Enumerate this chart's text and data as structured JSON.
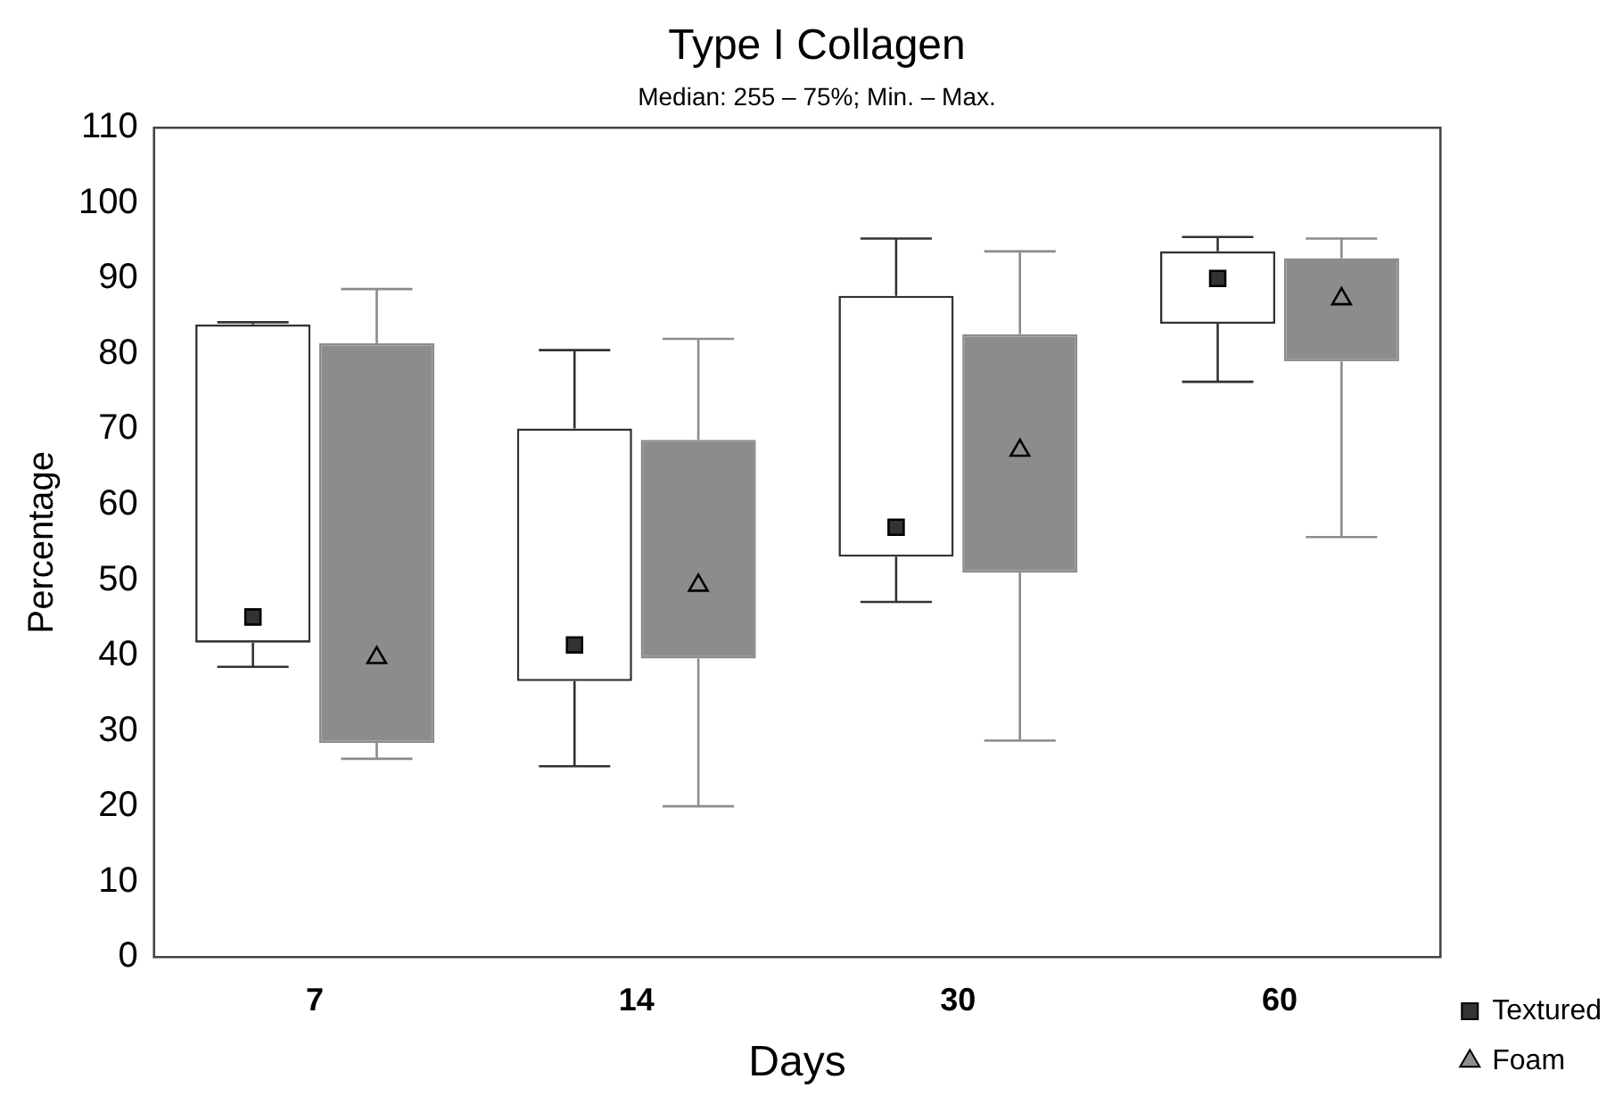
{
  "chart_data": {
    "type": "box",
    "title": "Type I Collagen",
    "subtitle": "Median: 255 – 75%; Min. – Max.",
    "xlabel": "Days",
    "ylabel": "Percentage",
    "categories": [
      "7",
      "14",
      "30",
      "60"
    ],
    "series": [
      {
        "name": "Textured",
        "color": "#333333",
        "marker": "square",
        "boxes": [
          {
            "low": 38.5,
            "q1": 41.7,
            "median": 45.1,
            "q3": 83.9,
            "high": 84.2
          },
          {
            "low": 25.3,
            "q1": 36.6,
            "median": 41.4,
            "q3": 70.1,
            "high": 80.5
          },
          {
            "low": 47.1,
            "q1": 53.1,
            "median": 57.0,
            "q3": 87.7,
            "high": 95.3
          },
          {
            "low": 76.3,
            "q1": 84.0,
            "median": 90.0,
            "q3": 93.6,
            "high": 95.5
          }
        ]
      },
      {
        "name": "Foam",
        "color": "#8c8c8c",
        "marker": "triangle",
        "boxes": [
          {
            "low": 26.3,
            "q1": 28.4,
            "median": 39.7,
            "q3": 81.4,
            "high": 88.6
          },
          {
            "low": 20.0,
            "q1": 39.6,
            "median": 49.3,
            "q3": 68.6,
            "high": 82.0
          },
          {
            "low": 28.7,
            "q1": 51.0,
            "median": 67.2,
            "q3": 82.6,
            "high": 93.6
          },
          {
            "low": 55.7,
            "q1": 79.0,
            "median": 87.3,
            "q3": 92.7,
            "high": 95.3
          }
        ]
      }
    ],
    "ylim": [
      0,
      110
    ],
    "yticks": [
      0,
      10,
      20,
      30,
      40,
      50,
      60,
      70,
      80,
      90,
      100,
      110
    ],
    "grid": false,
    "legend": "bottom right"
  }
}
